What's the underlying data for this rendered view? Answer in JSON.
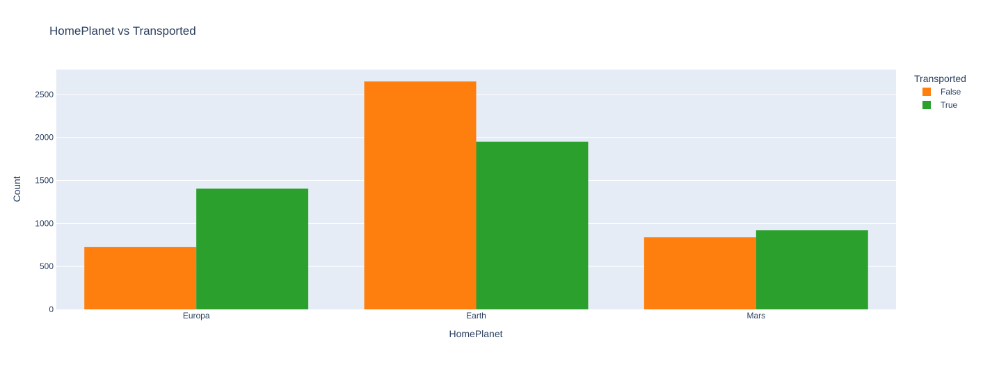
{
  "chart_data": {
    "type": "bar",
    "title": "HomePlanet vs Transported",
    "xlabel": "HomePlanet",
    "ylabel": "Count",
    "categories": [
      "Europa",
      "Earth",
      "Mars"
    ],
    "series": [
      {
        "name": "False",
        "color": "#ff7f0e",
        "values": [
          727,
          2651,
          839
        ]
      },
      {
        "name": "True",
        "color": "#2ca02c",
        "values": [
          1404,
          1951,
          920
        ]
      }
    ],
    "ylim": [
      0,
      2790
    ],
    "yticks": [
      0,
      500,
      1000,
      1500,
      2000,
      2500
    ],
    "grid": true,
    "legend": {
      "title": "Transported",
      "placement": "top-right"
    },
    "plot_background": "#e5ecf6"
  }
}
